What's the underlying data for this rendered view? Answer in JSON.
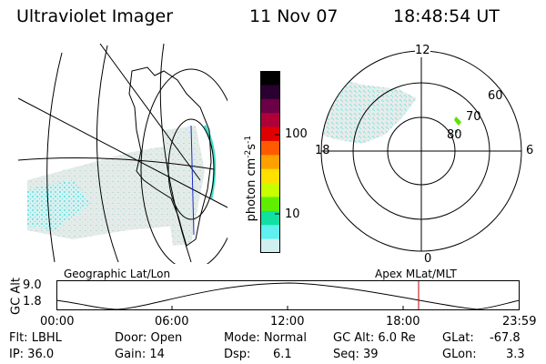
{
  "header": {
    "instrument": "Ultraviolet Imager",
    "date": "11 Nov 07",
    "time": "18:48:54 UT"
  },
  "colorbar": {
    "unit_label": "photon cm",
    "unit_exp1": "-2",
    "unit_s": "s",
    "unit_exp2": "-1",
    "ticks": [
      "100",
      "10"
    ],
    "colors": [
      "#000000",
      "#2a0030",
      "#6b0046",
      "#b0003a",
      "#e00000",
      "#ff5a00",
      "#ffa000",
      "#ffe000",
      "#c8ff00",
      "#60ee00",
      "#10e0a0",
      "#5ff0f0",
      "#d0f0f0"
    ]
  },
  "geo_map": {
    "label": "Geographic Lat/Lon"
  },
  "polar": {
    "label": "Apex MLat/MLT",
    "mlt_labels": {
      "top": "12",
      "right": "6",
      "bottom": "0",
      "left": "18"
    },
    "lat_labels": [
      "60",
      "70",
      "80"
    ]
  },
  "altitude_plot": {
    "ylabel": "GC Alt",
    "yticks": [
      "9.0",
      "1.8"
    ],
    "xticks": [
      "00:00",
      "06:00",
      "12:00",
      "18:00",
      "23:59"
    ],
    "marker_time": "18:48"
  },
  "status": {
    "flt": "Flt: LBHL",
    "ip": "IP: 36.0",
    "door": "Door: Open",
    "gain": "Gain: 14",
    "mode": "Mode: Normal",
    "dsp_label": "Dsp:",
    "dsp_value": "6.1",
    "gc_alt": "GC Alt: 6.0 Re",
    "seq": "Seq: 39",
    "glat_label": "GLat:",
    "glat_value": "-67.8",
    "glon_label": "GLon:",
    "glon_value": "3.3"
  }
}
